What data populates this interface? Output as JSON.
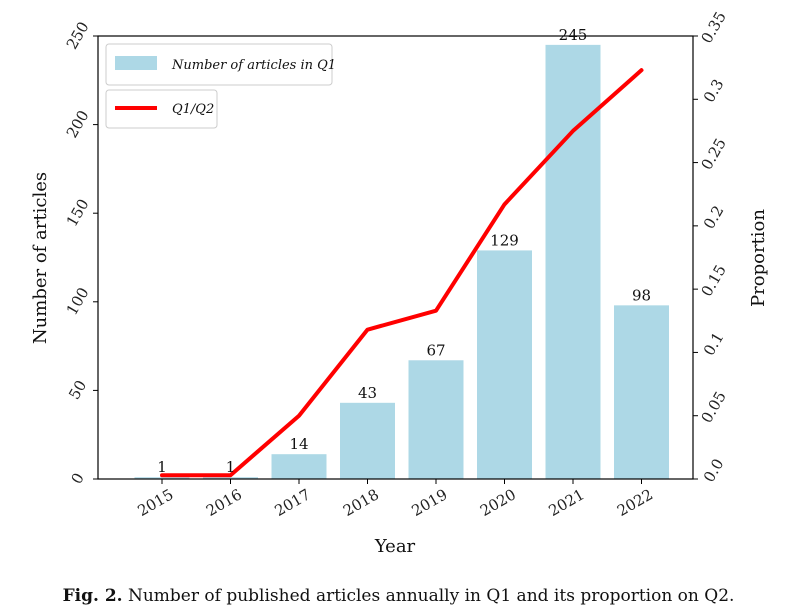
{
  "chart_data": {
    "type": "bar",
    "categories": [
      "2015",
      "2016",
      "2017",
      "2018",
      "2019",
      "2020",
      "2021",
      "2022"
    ],
    "series": [
      {
        "name": "Number of articles in Q1",
        "type": "bar",
        "axis": "left",
        "values": [
          1,
          1,
          14,
          43,
          67,
          129,
          245,
          98
        ],
        "color": "#add8e6"
      },
      {
        "name": "Q1/Q2",
        "type": "line",
        "axis": "right",
        "values": [
          0.003,
          0.003,
          0.05,
          0.118,
          0.133,
          0.217,
          0.275,
          0.323
        ],
        "color": "#ff0000"
      }
    ],
    "data_labels": [
      "1",
      "1",
      "14",
      "43",
      "67",
      "129",
      "245",
      "98"
    ],
    "xlabel": "Year",
    "ylabel": "Number of articles",
    "ylabel_right": "Proportion",
    "ylim": [
      0,
      250
    ],
    "ylim_right": [
      0,
      0.35
    ],
    "yticks": [
      "0",
      "50",
      "100",
      "150",
      "200",
      "250"
    ],
    "yticks_right": [
      "0.0",
      "0.05",
      "0.1",
      "0.15",
      "0.2",
      "0.25",
      "0.3",
      "0.35"
    ],
    "grid": false,
    "legend_position": "top-left"
  },
  "caption": {
    "label": "Fig. 2.",
    "text": "Number of published articles annually in Q1 and its proportion on Q2."
  }
}
